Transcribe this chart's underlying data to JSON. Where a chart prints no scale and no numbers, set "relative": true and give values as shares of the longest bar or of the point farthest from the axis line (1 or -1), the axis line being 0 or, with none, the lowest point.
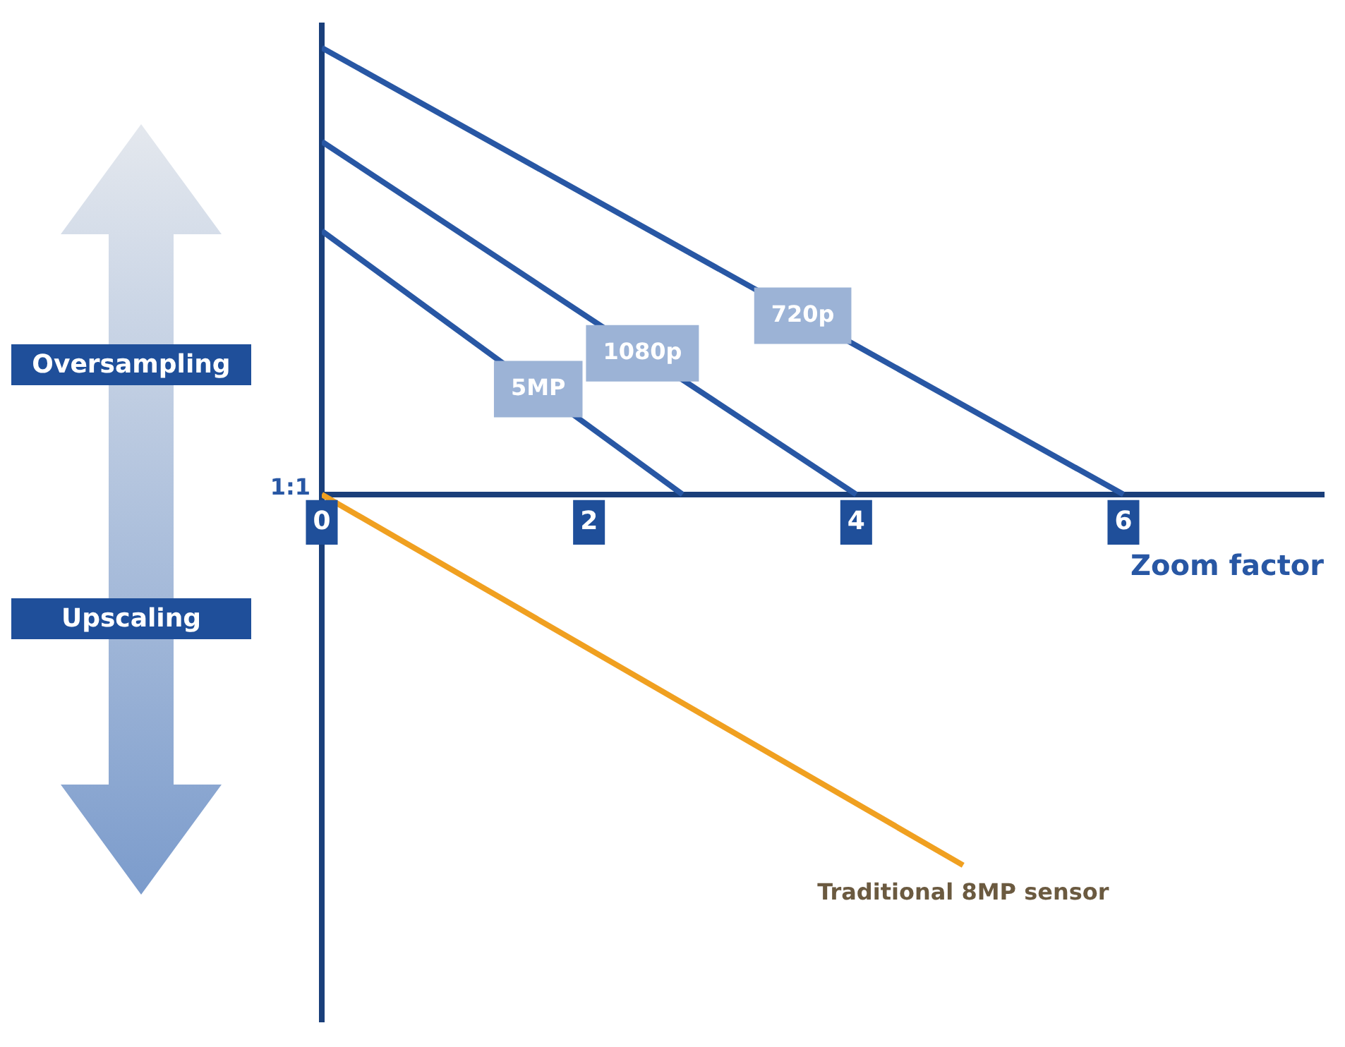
{
  "chart_data": {
    "type": "line",
    "xlabel": "Zoom factor",
    "relative": true,
    "xlim": [
      0,
      7.5
    ],
    "xticks": [
      0,
      2,
      4,
      6
    ],
    "grid": false,
    "legend": false,
    "marker": "none",
    "line_style": "solid",
    "annotations": [
      "Oversampling",
      "Upscaling",
      "1:1"
    ],
    "series": [
      {
        "name": "720p",
        "color": "#2857a4",
        "x": [
          0,
          6
        ],
        "values": [
          1,
          0
        ]
      },
      {
        "name": "1080p",
        "color": "#2857a4",
        "x": [
          0,
          4
        ],
        "values": [
          0.79,
          0
        ]
      },
      {
        "name": "5MP",
        "color": "#2857a4",
        "x": [
          0,
          2.7
        ],
        "values": [
          0.59,
          0
        ]
      },
      {
        "name": "Traditional 8MP sensor",
        "color": "#f0a020",
        "x": [
          0,
          4.8
        ],
        "values": [
          0,
          -0.83
        ]
      }
    ]
  }
}
